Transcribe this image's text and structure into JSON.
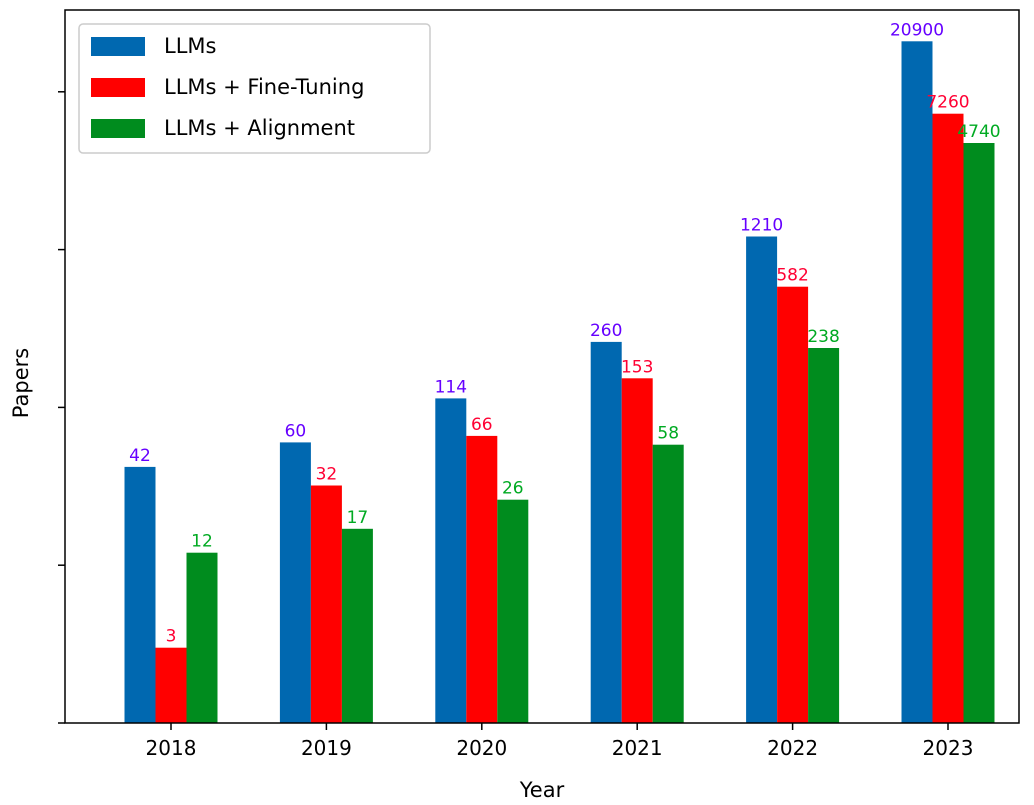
{
  "chart_data": {
    "type": "bar",
    "xlabel": "Year",
    "ylabel": "Papers",
    "y_scale": "log",
    "ylim": [
      1,
      40000
    ],
    "y_ticks": [
      1,
      10,
      100,
      1000,
      10000
    ],
    "y_tick_labels_shown": false,
    "categories": [
      "2018",
      "2019",
      "2020",
      "2021",
      "2022",
      "2023"
    ],
    "series": [
      {
        "name": "LLMs",
        "color": "#0068b0",
        "label_color": "#6600ff",
        "values": [
          42,
          60,
          114,
          260,
          1210,
          20900
        ]
      },
      {
        "name": "LLMs + Fine-Tuning",
        "color": "#ff0000",
        "label_color": "#ff0033",
        "values": [
          3,
          32,
          66,
          153,
          582,
          7260
        ]
      },
      {
        "name": "LLMs + Alignment",
        "color": "#008c1e",
        "label_color": "#00aa22",
        "values": [
          12,
          17,
          26,
          58,
          238,
          4740
        ]
      }
    ],
    "legend": {
      "placement": "top-left"
    },
    "grid": false
  }
}
